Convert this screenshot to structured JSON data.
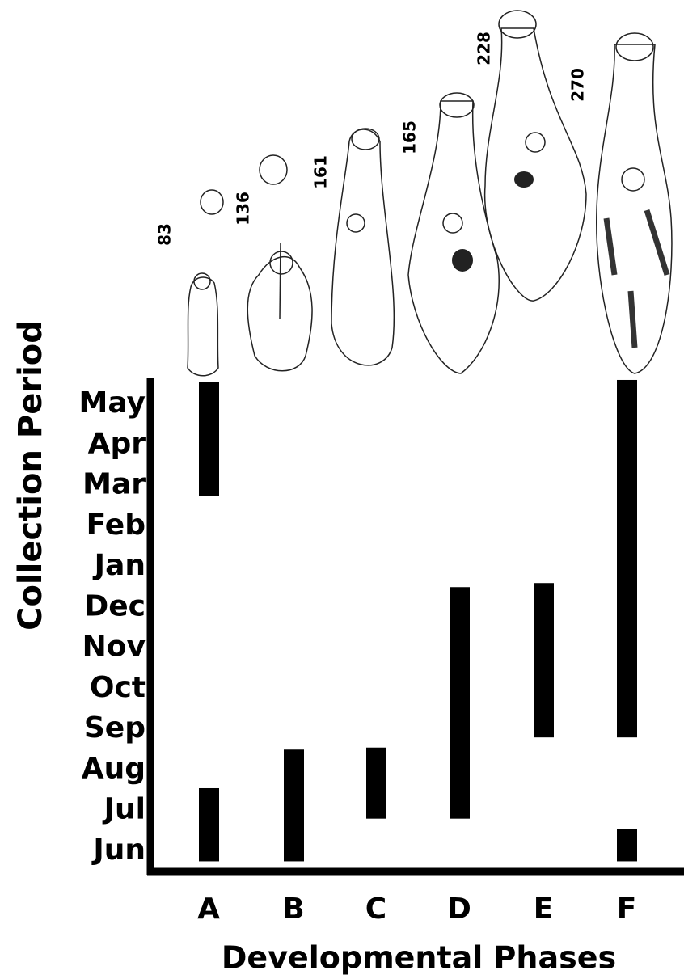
{
  "chart_data": {
    "type": "range",
    "ylabel": "Collection Period",
    "xlabel": "Developmental Phases",
    "categories": [
      "A",
      "B",
      "C",
      "D",
      "E",
      "F"
    ],
    "ranges": [
      [
        [
          0.25,
          2.05
        ],
        [
          9.25,
          12.05
        ]
      ],
      [
        [
          0.25,
          3.0
        ]
      ],
      [
        [
          1.3,
          3.05
        ]
      ],
      [
        [
          1.3,
          7.0
        ]
      ],
      [
        [
          3.3,
          7.1
        ]
      ],
      [
        [
          3.3,
          12.1
        ],
        [
          0.25,
          1.05
        ]
      ]
    ],
    "scale_labels": [
      83,
      136,
      161,
      165,
      228,
      270
    ],
    "color": "#000000",
    "ylim": [
      0,
      12.2
    ],
    "yticks": [
      {
        "value": 0.5,
        "label": "Jun"
      },
      {
        "value": 1.5,
        "label": "Jul"
      },
      {
        "value": 2.5,
        "label": "Aug"
      },
      {
        "value": 3.5,
        "label": "Sep"
      },
      {
        "value": 4.5,
        "label": "Oct"
      },
      {
        "value": 5.5,
        "label": "Nov"
      },
      {
        "value": 6.5,
        "label": "Dec"
      },
      {
        "value": 7.5,
        "label": "Jan"
      },
      {
        "value": 8.5,
        "label": "Feb"
      },
      {
        "value": 9.5,
        "label": "Mar"
      },
      {
        "value": 10.5,
        "label": "Apr"
      },
      {
        "value": 11.5,
        "label": "May"
      }
    ]
  }
}
